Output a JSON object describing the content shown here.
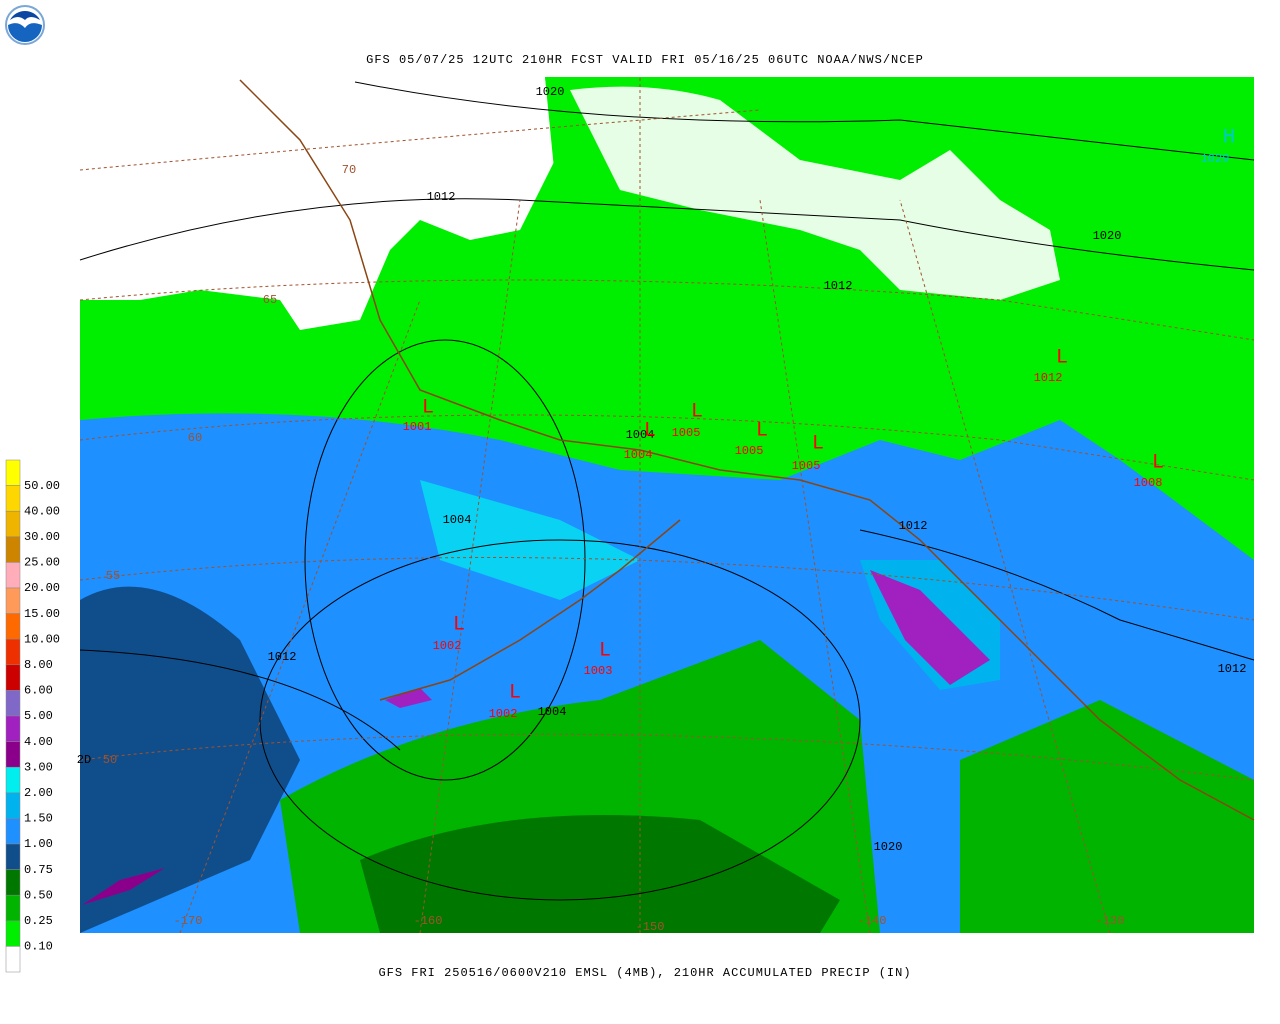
{
  "header": {
    "title": "GFS 05/07/25 12UTC 210HR FCST VALID FRI 05/16/25 06UTC NOAA/NWS/NCEP"
  },
  "footer": {
    "caption": "GFS FRI 250516/0600V210 EMSL (4MB), 210HR ACCUMULATED PRECIP (IN)"
  },
  "legend": {
    "items": [
      {
        "label": "50.00",
        "color": "#ffff00"
      },
      {
        "label": "40.00",
        "color": "#ffd700"
      },
      {
        "label": "30.00",
        "color": "#eeb400"
      },
      {
        "label": "25.00",
        "color": "#cd8500"
      },
      {
        "label": "20.00",
        "color": "#ffaeb9"
      },
      {
        "label": "15.00",
        "color": "#ff9a5a"
      },
      {
        "label": "10.00",
        "color": "#ff6a00"
      },
      {
        "label": "8.00",
        "color": "#ee3000"
      },
      {
        "label": "6.00",
        "color": "#cd0000"
      },
      {
        "label": "5.00",
        "color": "#8068c8"
      },
      {
        "label": "4.00",
        "color": "#a020c0"
      },
      {
        "label": "3.00",
        "color": "#8b008b"
      },
      {
        "label": "2.00",
        "color": "#00eeee"
      },
      {
        "label": "1.50",
        "color": "#00b2ee"
      },
      {
        "label": "1.00",
        "color": "#1e90ff"
      },
      {
        "label": "0.75",
        "color": "#104e8b"
      },
      {
        "label": "0.50",
        "color": "#007800"
      },
      {
        "label": "0.25",
        "color": "#00b400"
      },
      {
        "label": "0.10",
        "color": "#00ee00"
      }
    ],
    "bottom_color": "#ffffff"
  },
  "map": {
    "pressure_labels": [
      {
        "text": "1020",
        "color": "#000000"
      },
      {
        "text": "1012",
        "color": "#000000"
      },
      {
        "text": "1012",
        "color": "#000000"
      },
      {
        "text": "1020",
        "color": "#000000"
      },
      {
        "text": "H",
        "color": "#00c8e0"
      },
      {
        "text": "1029",
        "color": "#00c8e0"
      },
      {
        "text": "L",
        "color": "#ff0000"
      },
      {
        "text": "1012",
        "color": "#ff0000"
      },
      {
        "text": "L",
        "color": "#ff0000"
      },
      {
        "text": "1001",
        "color": "#ff0000"
      },
      {
        "text": "1004",
        "color": "#000000"
      },
      {
        "text": "L",
        "color": "#ff0000"
      },
      {
        "text": "1004",
        "color": "#ff0000"
      },
      {
        "text": "L",
        "color": "#ff0000"
      },
      {
        "text": "1005",
        "color": "#ff0000"
      },
      {
        "text": "L",
        "color": "#ff0000"
      },
      {
        "text": "1005",
        "color": "#ff0000"
      },
      {
        "text": "L",
        "color": "#ff0000"
      },
      {
        "text": "1005",
        "color": "#ff0000"
      },
      {
        "text": "L",
        "color": "#ff0000"
      },
      {
        "text": "1008",
        "color": "#ff0000"
      },
      {
        "text": "1004",
        "color": "#000000"
      },
      {
        "text": "1012",
        "color": "#000000"
      },
      {
        "text": "L",
        "color": "#ff0000"
      },
      {
        "text": "1002",
        "color": "#ff0000"
      },
      {
        "text": "L",
        "color": "#ff0000"
      },
      {
        "text": "1003",
        "color": "#ff0000"
      },
      {
        "text": "1012",
        "color": "#000000"
      },
      {
        "text": "L",
        "color": "#ff0000"
      },
      {
        "text": "1002",
        "color": "#ff0000"
      },
      {
        "text": "1004",
        "color": "#000000"
      },
      {
        "text": "1020",
        "color": "#000000"
      },
      {
        "text": "1012",
        "color": "#000000"
      },
      {
        "text": "2D",
        "color": "#000000"
      }
    ],
    "grid_labels": [
      "70",
      "65",
      "60",
      "55",
      "50",
      "-170",
      "-160",
      "-150",
      "-140",
      "-130"
    ],
    "grid_label_color": "#a0522d"
  }
}
